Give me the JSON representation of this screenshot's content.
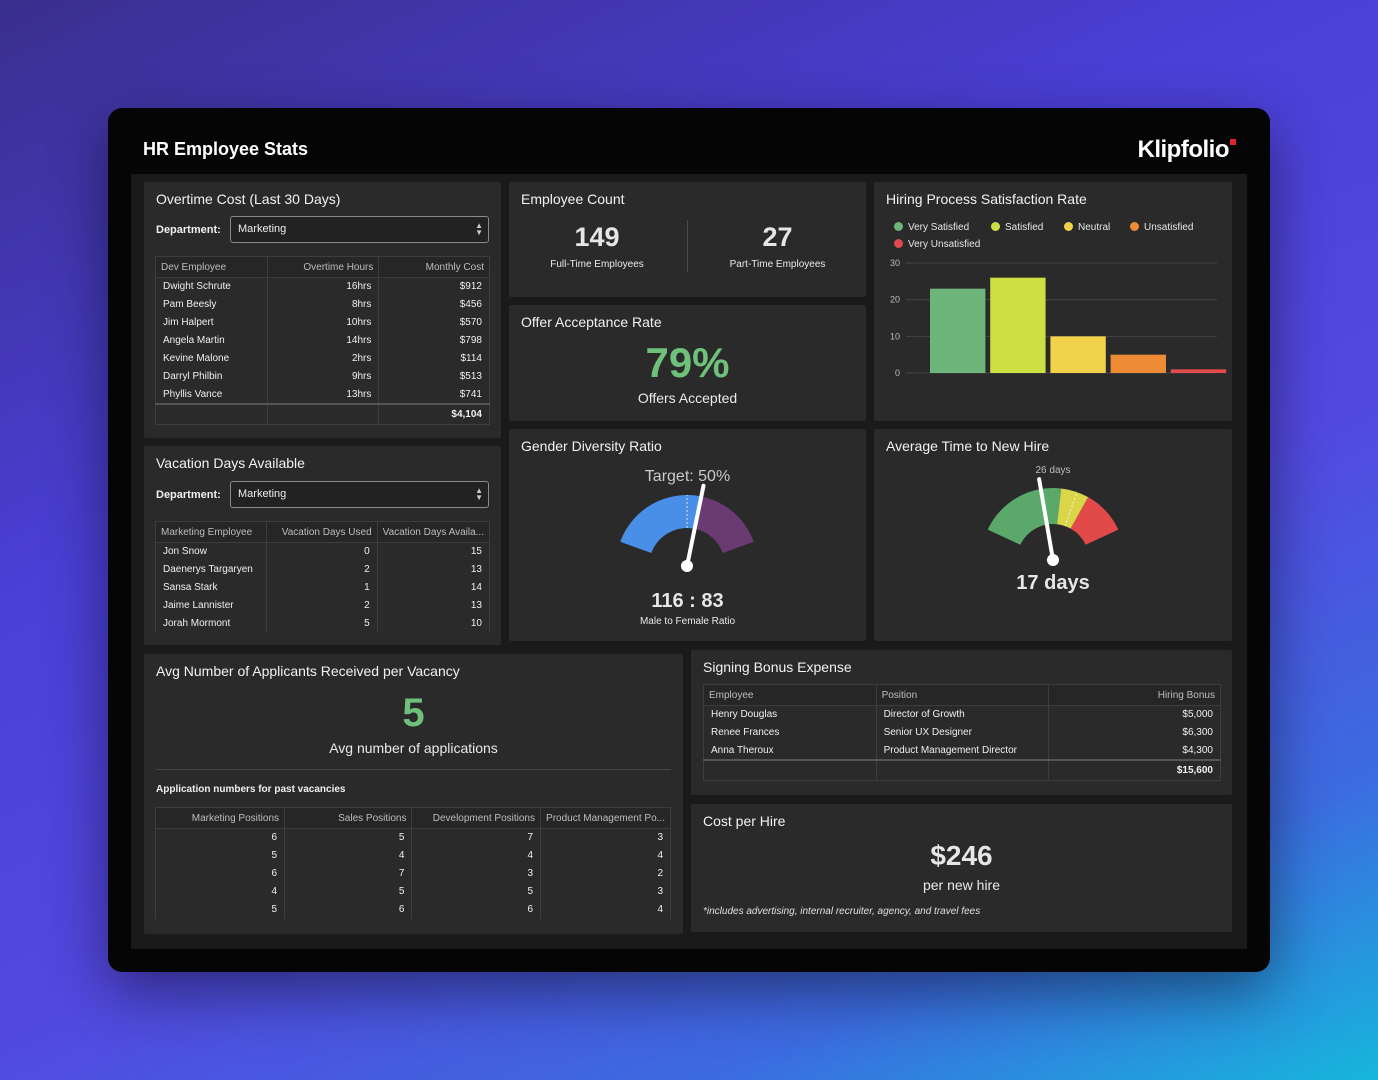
{
  "header": {
    "title": "HR Employee Stats",
    "logo": "Klipfolio"
  },
  "overtime": {
    "title": "Overtime Cost (Last 30 Days)",
    "department_label": "Department:",
    "department_value": "Marketing",
    "columns": [
      "Dev Employee",
      "Overtime Hours",
      "Monthly Cost"
    ],
    "rows": [
      [
        "Dwight Schrute",
        "16hrs",
        "$912"
      ],
      [
        "Pam Beesly",
        "8hrs",
        "$456"
      ],
      [
        "Jim Halpert",
        "10hrs",
        "$570"
      ],
      [
        "Angela Martin",
        "14hrs",
        "$798"
      ],
      [
        "Kevine Malone",
        "2hrs",
        "$114"
      ],
      [
        "Darryl Philbin",
        "9hrs",
        "$513"
      ],
      [
        "Phyllis Vance",
        "13hrs",
        "$741"
      ]
    ],
    "total": "$4,104"
  },
  "vacation": {
    "title": "Vacation Days Available",
    "department_label": "Department:",
    "department_value": "Marketing",
    "columns": [
      "Marketing Employee",
      "Vacation Days Used",
      "Vacation Days Availa..."
    ],
    "rows": [
      [
        "Jon Snow",
        "0",
        "15"
      ],
      [
        "Daenerys Targaryen",
        "2",
        "13"
      ],
      [
        "Sansa Stark",
        "1",
        "14"
      ],
      [
        "Jaime Lannister",
        "2",
        "13"
      ],
      [
        "Jorah Mormont",
        "5",
        "10"
      ]
    ]
  },
  "employee_count": {
    "title": "Employee Count",
    "full_time_value": "149",
    "full_time_label": "Full-Time Employees",
    "part_time_value": "27",
    "part_time_label": "Part-Time Employees"
  },
  "offer": {
    "title": "Offer Acceptance Rate",
    "value": "79%",
    "label": "Offers Accepted"
  },
  "gender": {
    "title": "Gender Diversity Ratio",
    "target_label": "Target: 50%",
    "ratio_value": "116 : 83",
    "ratio_label": "Male to Female Ratio",
    "male_share": 0.583,
    "colors": {
      "male": "#4a8fe7",
      "female": "#6a3b73"
    }
  },
  "satisfaction": {
    "title": "Hiring Process Satisfaction Rate",
    "chart_data": {
      "type": "bar",
      "categories": [
        "Very Satisfied",
        "Satisfied",
        "Neutral",
        "Unsatisfied",
        "Very Unsatisfied"
      ],
      "values": [
        23,
        26,
        10,
        5,
        1
      ],
      "colors": [
        "#6db57a",
        "#cde043",
        "#f2d24b",
        "#ee8b35",
        "#e04a4a"
      ],
      "ylim": [
        0,
        30
      ],
      "yticks": [
        "0",
        "10",
        "20",
        "30"
      ],
      "legend_position": "top-left",
      "grid": true
    }
  },
  "time_to_hire": {
    "title": "Average Time to New Hire",
    "target_label": "26 days",
    "value_label": "17 days",
    "value": 17,
    "max": 40,
    "colors": [
      "#5aa86a",
      "#d9d64a",
      "#e24a4a"
    ]
  },
  "applicants": {
    "title": "Avg Number of Applicants Received per Vacancy",
    "value": "5",
    "label": "Avg number of applications",
    "table_title": "Application numbers for past vacancies",
    "columns": [
      "Marketing Positions",
      "Sales Positions",
      "Development Positions",
      "Product Management Po..."
    ],
    "rows": [
      [
        "6",
        "5",
        "7",
        "3"
      ],
      [
        "5",
        "4",
        "4",
        "4"
      ],
      [
        "6",
        "7",
        "3",
        "2"
      ],
      [
        "4",
        "5",
        "5",
        "3"
      ],
      [
        "5",
        "6",
        "6",
        "4"
      ]
    ]
  },
  "signing_bonus": {
    "title": "Signing Bonus Expense",
    "columns": [
      "Employee",
      "Position",
      "Hiring Bonus"
    ],
    "rows": [
      [
        "Henry Douglas",
        "Director of Growth",
        "$5,000"
      ],
      [
        "Renee Frances",
        "Senior UX Designer",
        "$6,300"
      ],
      [
        "Anna Theroux",
        "Product Management Director",
        "$4,300"
      ]
    ],
    "total": "$15,600"
  },
  "cost_per_hire": {
    "title": "Cost per Hire",
    "value": "$246",
    "label": "per new hire",
    "footnote": "*includes advertising, internal recruiter, agency, and travel fees"
  },
  "accent_green": "#6ec07a"
}
